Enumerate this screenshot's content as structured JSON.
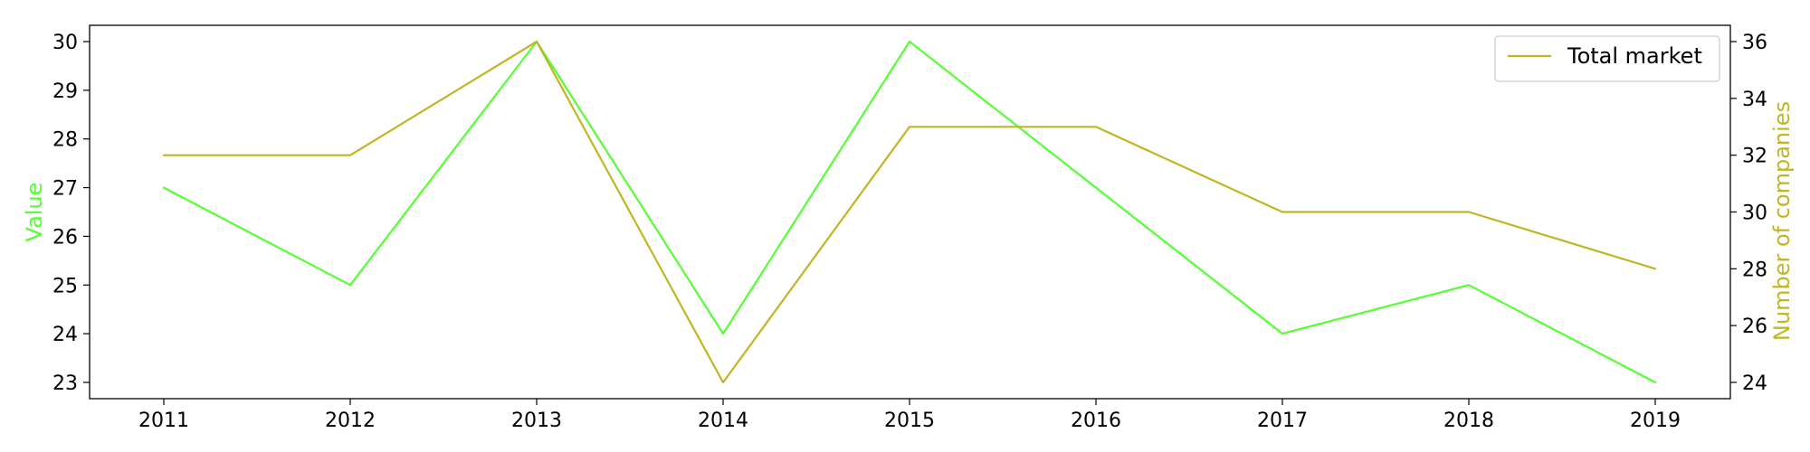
{
  "chart_data": {
    "type": "line",
    "x": [
      2011,
      2012,
      2013,
      2014,
      2015,
      2016,
      2017,
      2018,
      2019
    ],
    "series": [
      {
        "axis": "left",
        "color": "#55ff33",
        "values": [
          27,
          25,
          30,
          24,
          30,
          27,
          24,
          25,
          23
        ]
      },
      {
        "name": "Total market",
        "axis": "right",
        "color": "#bfb623",
        "values": [
          32,
          32,
          36,
          24,
          33,
          33,
          30,
          30,
          28
        ]
      }
    ],
    "ylabel": "Value",
    "ylabel_color": "#55ff33",
    "y2label": "Number of companies",
    "y2label_color": "#bfb623",
    "yticks": [
      23,
      24,
      25,
      26,
      27,
      28,
      29,
      30
    ],
    "y2ticks": [
      24,
      26,
      28,
      30,
      32,
      34,
      36
    ],
    "grid": false,
    "legend_position": "top-right"
  }
}
